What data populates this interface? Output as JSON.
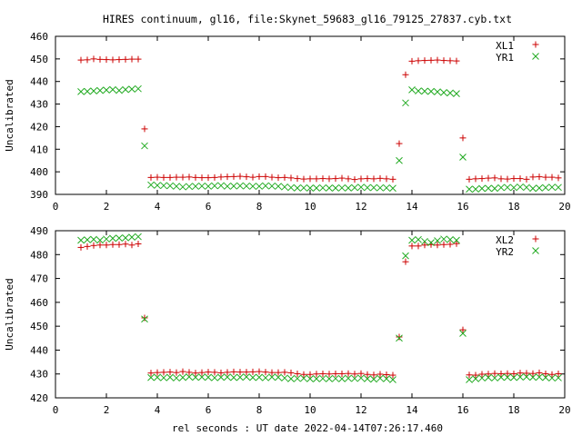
{
  "figure": {
    "title": "HIRES continuum, gl16, file:Skynet_59683_gl16_79125_27837.cyb.txt",
    "xlabel": "rel seconds : UT date 2022-04-14T07:26:17.460"
  },
  "colors": {
    "red": "#cc0000",
    "green": "#22aa22"
  },
  "chart_data": [
    {
      "type": "scatter",
      "ylabel": "Uncalibrated",
      "xlim": [
        0,
        20
      ],
      "ylim": [
        390,
        460
      ],
      "xticks": [
        "0",
        "2",
        "4",
        "6",
        "8",
        "10",
        "12",
        "14",
        "16",
        "18",
        "20"
      ],
      "yticks": [
        "390",
        "400",
        "410",
        "420",
        "430",
        "440",
        "450",
        "460"
      ],
      "legend_position": "top-right",
      "series": [
        {
          "name": "XL1",
          "marker": "plus",
          "color": "#cc0000",
          "x": [
            1.0,
            1.25,
            1.5,
            1.75,
            2.0,
            2.25,
            2.5,
            2.75,
            3.0,
            3.25,
            3.5,
            3.75,
            4.0,
            4.25,
            4.5,
            4.75,
            5.0,
            5.25,
            5.5,
            5.75,
            6.0,
            6.25,
            6.5,
            6.75,
            7.0,
            7.25,
            7.5,
            7.75,
            8.0,
            8.25,
            8.5,
            8.75,
            9.0,
            9.25,
            9.5,
            9.75,
            10.0,
            10.25,
            10.5,
            10.75,
            11.0,
            11.25,
            11.5,
            11.75,
            12.0,
            12.25,
            12.5,
            12.75,
            13.0,
            13.25,
            13.5,
            13.75,
            14.0,
            14.25,
            14.5,
            14.75,
            15.0,
            15.25,
            15.5,
            15.75,
            16.0,
            16.25,
            16.5,
            16.75,
            17.0,
            17.25,
            17.5,
            17.75,
            18.0,
            18.25,
            18.5,
            18.75,
            19.0,
            19.25,
            19.5,
            19.75
          ],
          "y": [
            449.5,
            449.6,
            450.0,
            449.8,
            449.7,
            449.6,
            449.7,
            449.8,
            449.9,
            449.9,
            419.0,
            397.5,
            397.6,
            397.5,
            397.5,
            397.6,
            397.6,
            397.7,
            397.5,
            397.4,
            397.4,
            397.5,
            397.7,
            397.8,
            397.9,
            398.0,
            397.8,
            397.6,
            397.9,
            397.9,
            397.6,
            397.4,
            397.5,
            397.3,
            397.0,
            396.8,
            396.9,
            396.9,
            397.0,
            396.9,
            397.0,
            397.2,
            396.9,
            396.6,
            396.9,
            397.0,
            396.9,
            397.1,
            396.9,
            396.7,
            412.5,
            443.0,
            449.0,
            449.2,
            449.3,
            449.4,
            449.5,
            449.3,
            449.2,
            449.1,
            415.0,
            396.7,
            396.9,
            397.0,
            397.2,
            397.3,
            396.9,
            396.8,
            397.0,
            397.0,
            396.7,
            397.7,
            397.8,
            397.6,
            397.6,
            397.3
          ]
        },
        {
          "name": "YR1",
          "marker": "cross",
          "color": "#22aa22",
          "x": [
            1.0,
            1.25,
            1.5,
            1.75,
            2.0,
            2.25,
            2.5,
            2.75,
            3.0,
            3.25,
            3.5,
            3.75,
            4.0,
            4.25,
            4.5,
            4.75,
            5.0,
            5.25,
            5.5,
            5.75,
            6.0,
            6.25,
            6.5,
            6.75,
            7.0,
            7.25,
            7.5,
            7.75,
            8.0,
            8.25,
            8.5,
            8.75,
            9.0,
            9.25,
            9.5,
            9.75,
            10.0,
            10.25,
            10.5,
            10.75,
            11.0,
            11.25,
            11.5,
            11.75,
            12.0,
            12.25,
            12.5,
            12.75,
            13.0,
            13.25,
            13.5,
            13.75,
            14.0,
            14.25,
            14.5,
            14.75,
            15.0,
            15.25,
            15.5,
            15.75,
            16.0,
            16.25,
            16.5,
            16.75,
            17.0,
            17.25,
            17.5,
            17.75,
            18.0,
            18.25,
            18.5,
            18.75,
            19.0,
            19.25,
            19.5,
            19.75
          ],
          "y": [
            435.5,
            435.6,
            435.8,
            436.0,
            436.2,
            436.4,
            436.0,
            436.4,
            436.6,
            436.8,
            411.5,
            394.2,
            394.0,
            393.9,
            393.8,
            393.6,
            393.3,
            393.5,
            393.6,
            393.7,
            393.6,
            393.8,
            393.9,
            393.6,
            393.7,
            393.8,
            393.7,
            393.6,
            393.6,
            393.8,
            393.7,
            393.6,
            393.3,
            393.0,
            392.8,
            392.9,
            392.8,
            392.8,
            392.9,
            392.8,
            392.8,
            392.9,
            392.8,
            393.0,
            393.2,
            393.0,
            393.0,
            392.9,
            392.9,
            392.7,
            405.0,
            430.5,
            436.3,
            435.8,
            435.7,
            435.6,
            435.4,
            435.1,
            434.9,
            434.6,
            406.5,
            392.3,
            392.3,
            392.6,
            392.7,
            392.6,
            393.0,
            393.1,
            393.0,
            393.3,
            393.1,
            392.6,
            392.8,
            393.0,
            393.2,
            393.1
          ]
        }
      ]
    },
    {
      "type": "scatter",
      "ylabel": "Uncalibrated",
      "xlim": [
        0,
        20
      ],
      "ylim": [
        420,
        490
      ],
      "xticks": [
        "0",
        "2",
        "4",
        "6",
        "8",
        "10",
        "12",
        "14",
        "16",
        "18",
        "20"
      ],
      "yticks": [
        "420",
        "430",
        "440",
        "450",
        "460",
        "470",
        "480",
        "490"
      ],
      "legend_position": "top-right",
      "series": [
        {
          "name": "XL2",
          "marker": "plus",
          "color": "#cc0000",
          "x": [
            1.0,
            1.25,
            1.5,
            1.75,
            2.0,
            2.25,
            2.5,
            2.75,
            3.0,
            3.25,
            3.5,
            3.75,
            4.0,
            4.25,
            4.5,
            4.75,
            5.0,
            5.25,
            5.5,
            5.75,
            6.0,
            6.25,
            6.5,
            6.75,
            7.0,
            7.25,
            7.5,
            7.75,
            8.0,
            8.25,
            8.5,
            8.75,
            9.0,
            9.25,
            9.5,
            9.75,
            10.0,
            10.25,
            10.5,
            10.75,
            11.0,
            11.25,
            11.5,
            11.75,
            12.0,
            12.25,
            12.5,
            12.75,
            13.0,
            13.25,
            13.5,
            13.75,
            14.0,
            14.25,
            14.5,
            14.75,
            15.0,
            15.25,
            15.5,
            15.75,
            16.0,
            16.25,
            16.5,
            16.75,
            17.0,
            17.25,
            17.5,
            17.75,
            18.0,
            18.25,
            18.5,
            18.75,
            19.0,
            19.25,
            19.5,
            19.75
          ],
          "y": [
            483.0,
            483.4,
            483.8,
            484.0,
            484.0,
            484.2,
            484.2,
            484.4,
            484.0,
            484.5,
            453.5,
            430.4,
            430.6,
            430.7,
            430.8,
            430.6,
            431.0,
            430.7,
            430.4,
            430.6,
            430.8,
            430.7,
            430.5,
            430.7,
            430.9,
            430.8,
            430.8,
            430.9,
            431.0,
            430.8,
            430.6,
            430.6,
            430.7,
            430.5,
            430.1,
            429.8,
            429.8,
            430.0,
            430.1,
            430.0,
            430.1,
            430.1,
            430.2,
            430.0,
            430.2,
            429.8,
            429.6,
            429.9,
            429.7,
            429.5,
            445.5,
            477.0,
            483.6,
            483.6,
            484.0,
            484.2,
            484.0,
            484.2,
            484.3,
            484.6,
            448.5,
            429.6,
            429.5,
            429.9,
            430.0,
            430.2,
            430.1,
            430.2,
            430.1,
            430.4,
            430.3,
            430.2,
            430.5,
            430.1,
            429.8,
            430.1
          ]
        },
        {
          "name": "YR2",
          "marker": "cross",
          "color": "#22aa22",
          "x": [
            1.0,
            1.25,
            1.5,
            1.75,
            2.0,
            2.25,
            2.5,
            2.75,
            3.0,
            3.25,
            3.5,
            3.75,
            4.0,
            4.25,
            4.5,
            4.75,
            5.0,
            5.25,
            5.5,
            5.75,
            6.0,
            6.25,
            6.5,
            6.75,
            7.0,
            7.25,
            7.5,
            7.75,
            8.0,
            8.25,
            8.5,
            8.75,
            9.0,
            9.25,
            9.5,
            9.75,
            10.0,
            10.25,
            10.5,
            10.75,
            11.0,
            11.25,
            11.5,
            11.75,
            12.0,
            12.25,
            12.5,
            12.75,
            13.0,
            13.25,
            13.5,
            13.75,
            14.0,
            14.25,
            14.5,
            14.75,
            15.0,
            15.25,
            15.5,
            15.75,
            16.0,
            16.25,
            16.5,
            16.75,
            17.0,
            17.25,
            17.5,
            17.75,
            18.0,
            18.25,
            18.5,
            18.75,
            19.0,
            19.25,
            19.5,
            19.75
          ],
          "y": [
            486.0,
            486.2,
            486.4,
            486.0,
            486.5,
            486.8,
            486.9,
            487.0,
            487.3,
            487.5,
            453.0,
            428.5,
            428.6,
            428.4,
            428.6,
            428.3,
            428.5,
            428.8,
            428.6,
            428.7,
            428.6,
            428.4,
            428.6,
            428.7,
            428.5,
            428.6,
            428.8,
            428.5,
            428.6,
            428.4,
            428.7,
            428.6,
            428.3,
            428.0,
            428.1,
            428.2,
            428.0,
            428.0,
            428.1,
            428.0,
            428.1,
            428.0,
            428.2,
            428.1,
            428.3,
            428.0,
            427.8,
            428.2,
            428.0,
            427.6,
            445.0,
            479.5,
            486.0,
            486.3,
            485.5,
            485.0,
            485.8,
            486.5,
            486.3,
            486.0,
            447.0,
            427.6,
            428.0,
            428.3,
            428.5,
            428.3,
            428.6,
            428.6,
            428.5,
            428.7,
            428.8,
            428.6,
            428.7,
            428.5,
            428.3,
            428.4
          ]
        }
      ]
    }
  ]
}
